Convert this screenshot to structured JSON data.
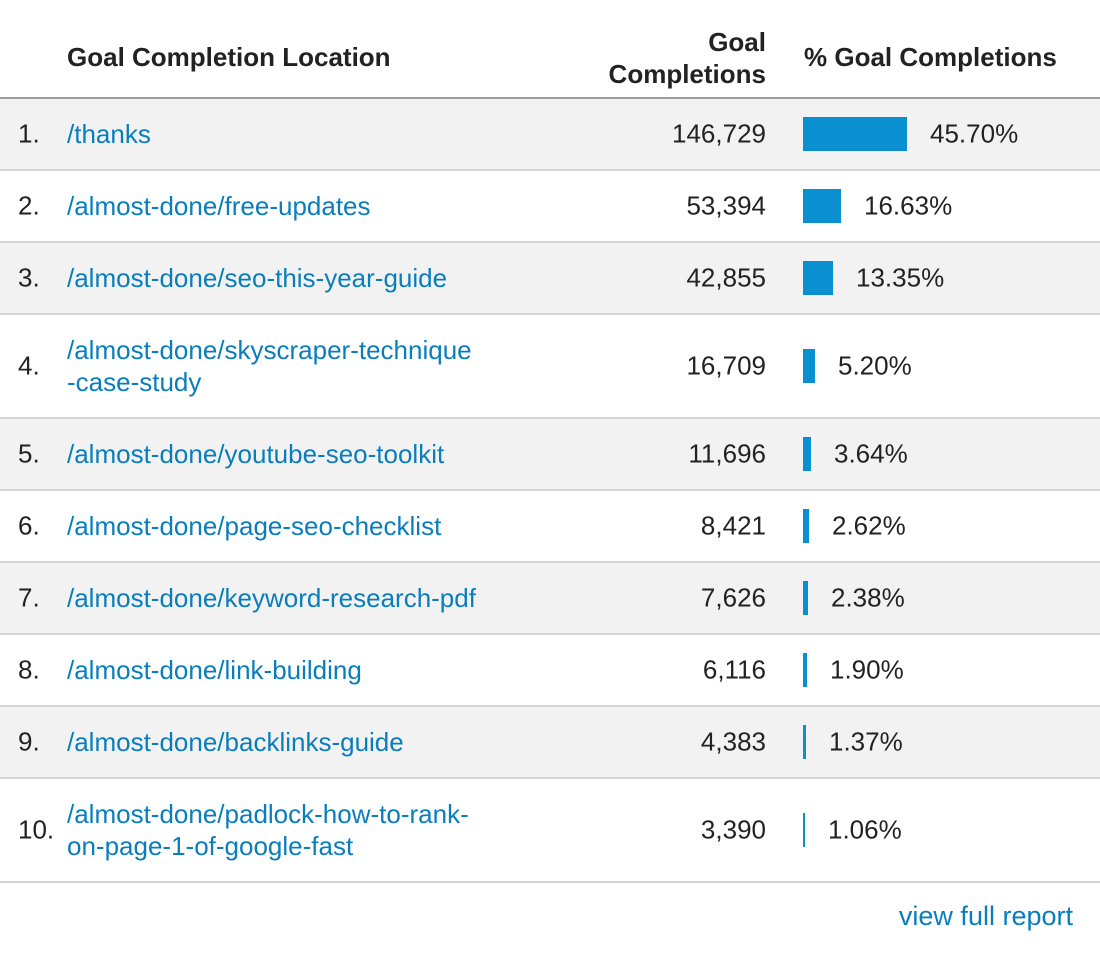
{
  "header": {
    "location": "Goal Completion Location",
    "completions_line1": "Goal",
    "completions_line2": "Completions",
    "percent": "% Goal Completions"
  },
  "colors": {
    "link": "#0a7dbd",
    "bar": "#0a8fd0",
    "stripe": "#f2f2f2"
  },
  "rows": [
    {
      "rank": "1.",
      "lines": [
        "/thanks"
      ],
      "completions": "146,729",
      "percent": "45.70%",
      "share": 45.7
    },
    {
      "rank": "2.",
      "lines": [
        "/almost-done/free-updates"
      ],
      "completions": "53,394",
      "percent": "16.63%",
      "share": 16.63
    },
    {
      "rank": "3.",
      "lines": [
        "/almost-done/seo-this-year-guide"
      ],
      "completions": "42,855",
      "percent": "13.35%",
      "share": 13.35
    },
    {
      "rank": "4.",
      "lines": [
        "/almost-done/skyscraper-technique",
        "-case-study"
      ],
      "completions": "16,709",
      "percent": "5.20%",
      "share": 5.2
    },
    {
      "rank": "5.",
      "lines": [
        "/almost-done/youtube-seo-toolkit"
      ],
      "completions": "11,696",
      "percent": "3.64%",
      "share": 3.64
    },
    {
      "rank": "6.",
      "lines": [
        "/almost-done/page-seo-checklist"
      ],
      "completions": "8,421",
      "percent": "2.62%",
      "share": 2.62
    },
    {
      "rank": "7.",
      "lines": [
        "/almost-done/keyword-research-pdf"
      ],
      "completions": "7,626",
      "percent": "2.38%",
      "share": 2.38
    },
    {
      "rank": "8.",
      "lines": [
        "/almost-done/link-building"
      ],
      "completions": "6,116",
      "percent": "1.90%",
      "share": 1.9
    },
    {
      "rank": "9.",
      "lines": [
        "/almost-done/backlinks-guide"
      ],
      "completions": "4,383",
      "percent": "1.37%",
      "share": 1.37
    },
    {
      "rank": "10.",
      "lines": [
        "/almost-done/padlock-how-to-rank-",
        "on-page-1-of-google-fast"
      ],
      "completions": "3,390",
      "percent": "1.06%",
      "share": 1.06
    }
  ],
  "footer": {
    "full_report": "view full report"
  }
}
